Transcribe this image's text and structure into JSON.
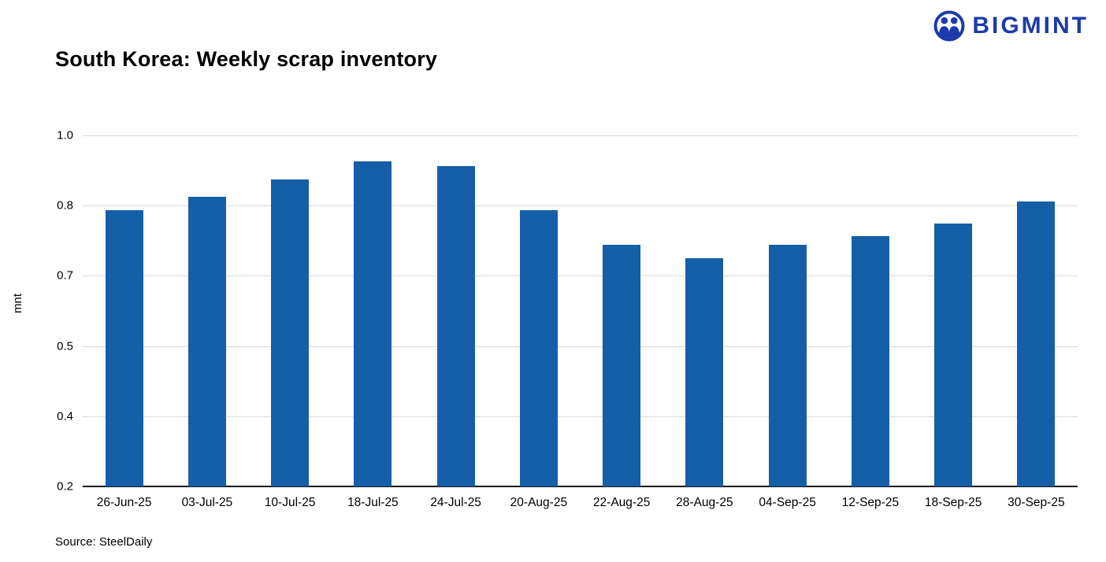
{
  "logo": {
    "text": "BIGMINT",
    "brand_color": "#1C3AA9"
  },
  "chart_data": {
    "type": "bar",
    "title": "South Korea: Weekly scrap inventory",
    "ylabel": "mnt",
    "xlabel": "",
    "source": "Source: SteelDaily",
    "categories": [
      "26-Jun-25",
      "03-Jul-25",
      "10-Jul-25",
      "18-Jul-25",
      "24-Jul-25",
      "20-Aug-25",
      "22-Aug-25",
      "28-Aug-25",
      "04-Sep-25",
      "12-Sep-25",
      "18-Sep-25",
      "30-Sep-25"
    ],
    "values": [
      0.83,
      0.86,
      0.9,
      0.94,
      0.93,
      0.83,
      0.75,
      0.72,
      0.75,
      0.77,
      0.8,
      0.85
    ],
    "ylim": [
      0.2,
      1.0
    ],
    "yticks": {
      "values": [
        0.2,
        0.36,
        0.52,
        0.68,
        0.84,
        1.0
      ],
      "labels": [
        "0.2",
        "0.4",
        "0.5",
        "0.7",
        "0.8",
        "1.0"
      ]
    },
    "grid": true,
    "legend": false,
    "bar_color": "#155FA8",
    "grid_color": "#D9D9D9",
    "axis_color": "#1A1A1A"
  }
}
